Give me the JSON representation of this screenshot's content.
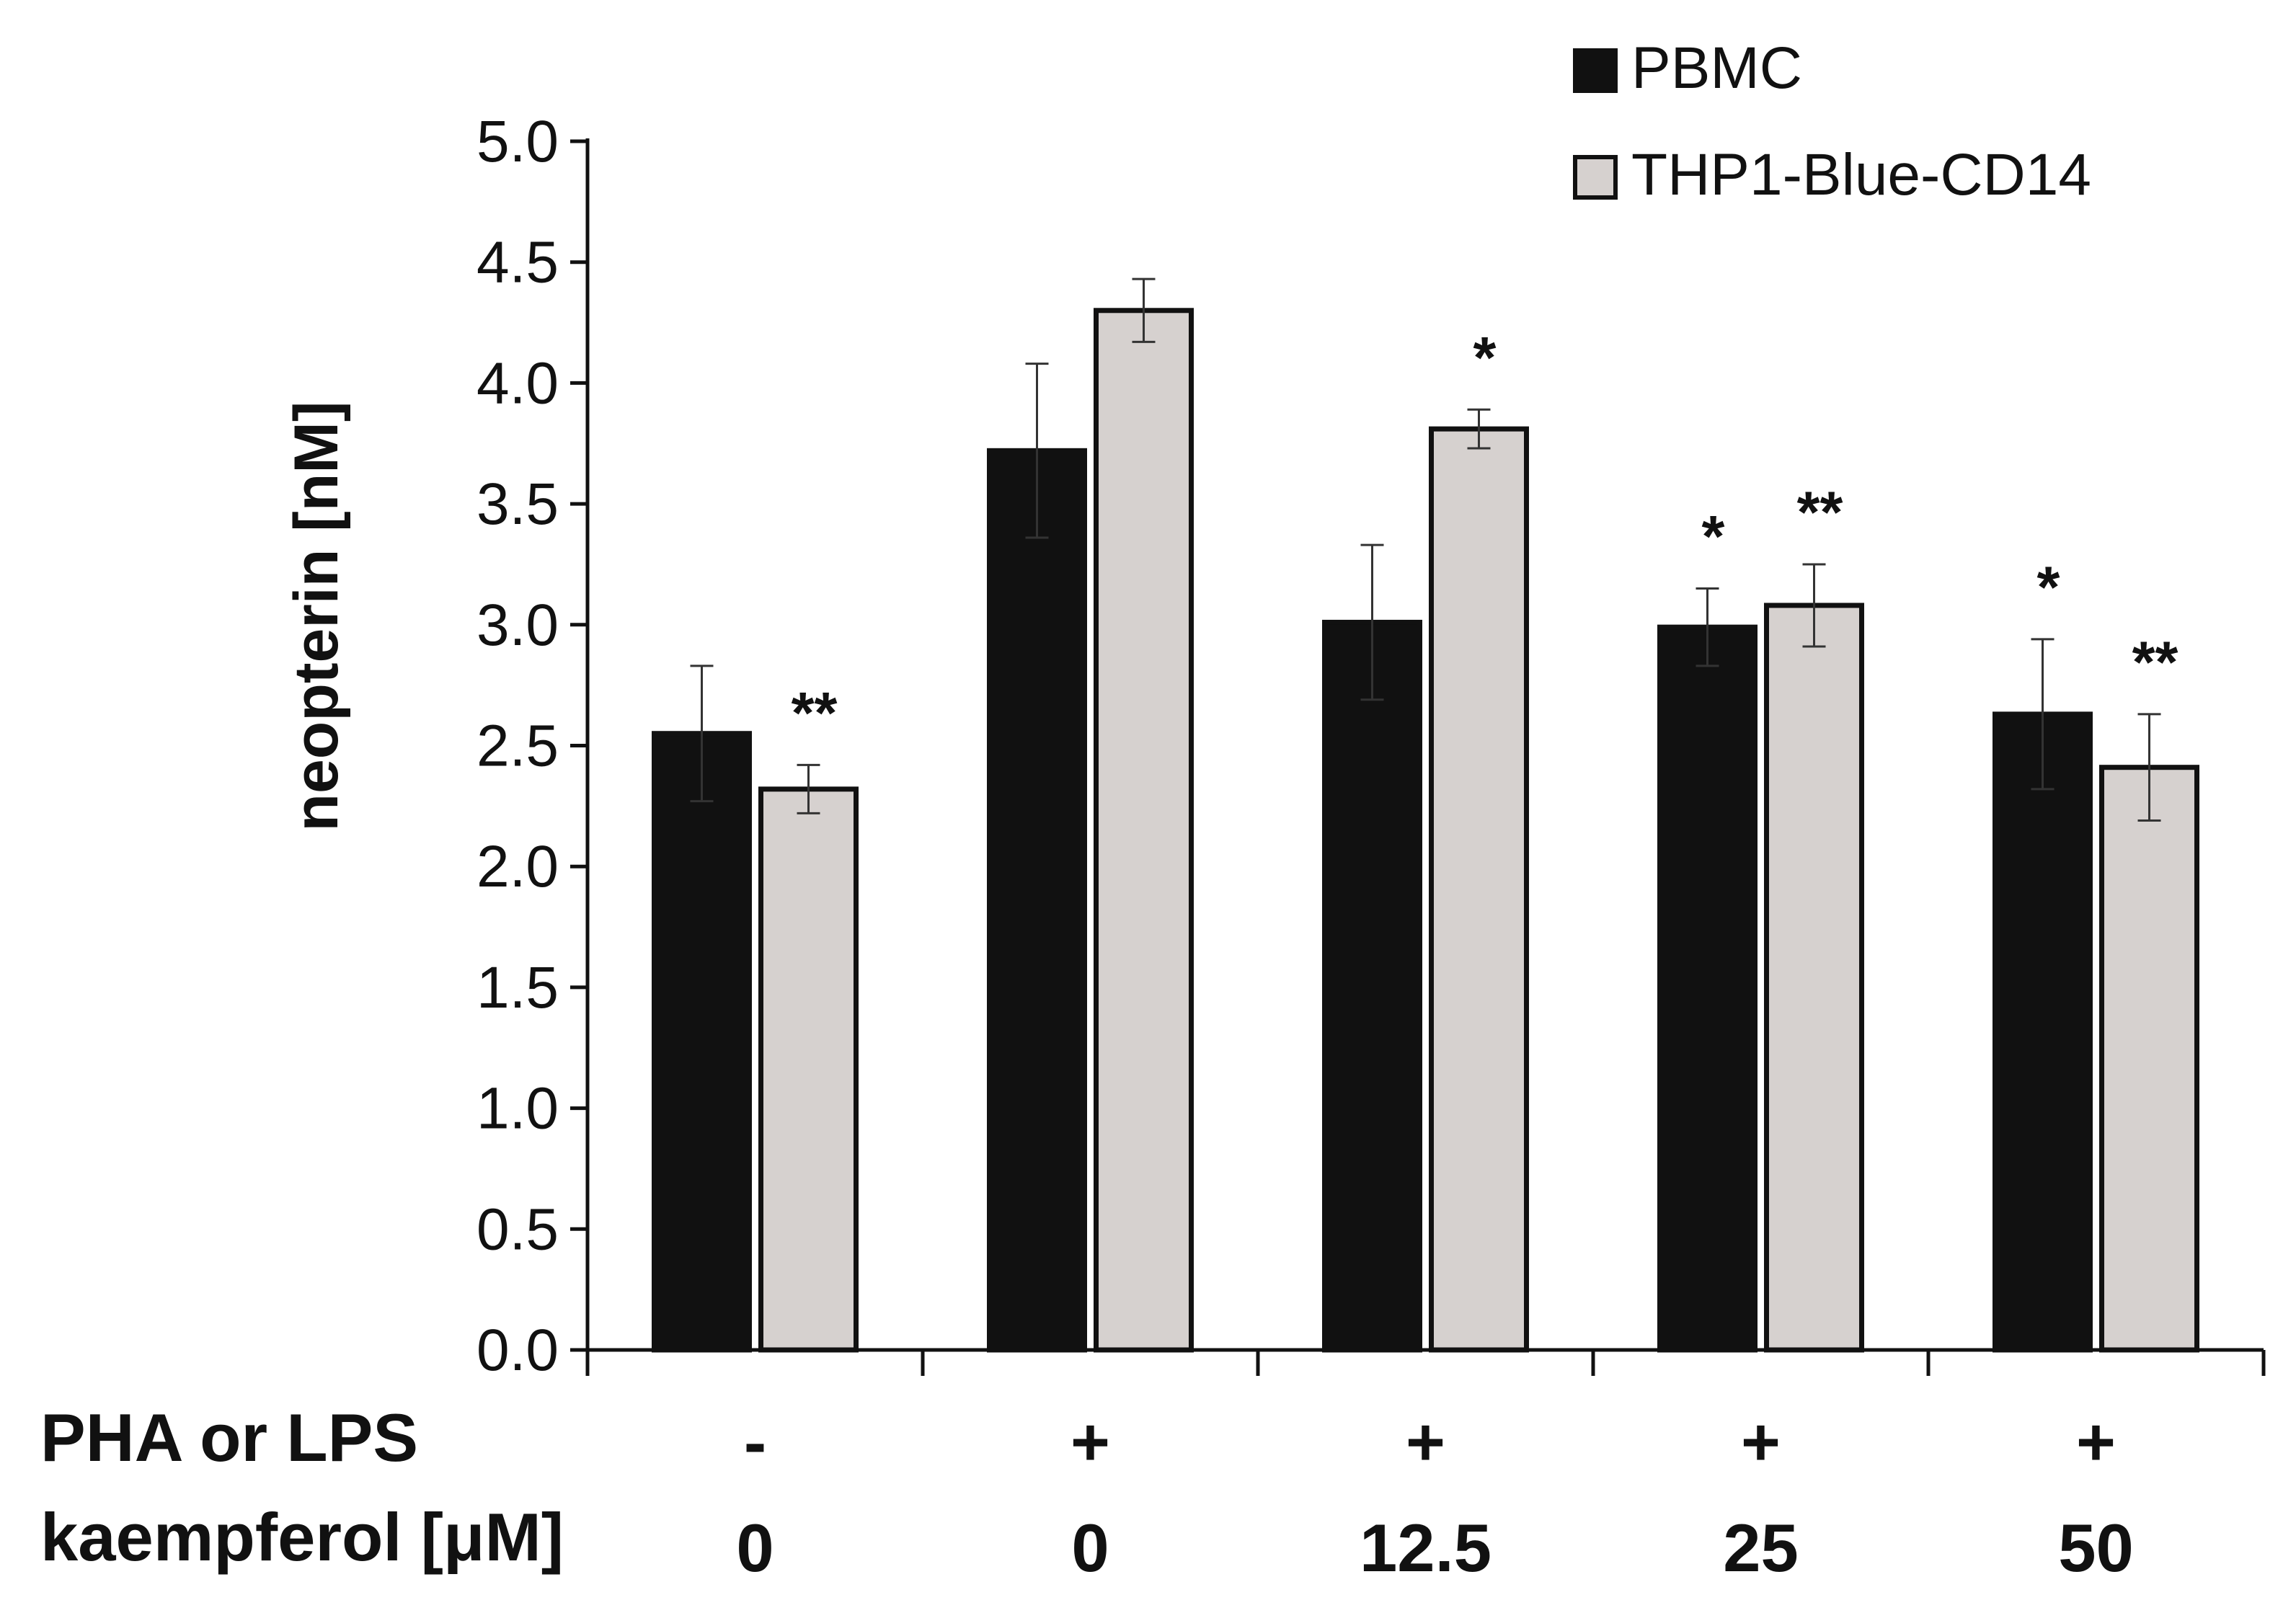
{
  "chart_data": {
    "type": "bar",
    "title": "",
    "xlabel": "",
    "ylabel": "neopterin [nM]",
    "ylim": [
      0,
      5.0
    ],
    "yticks": [
      "0.0",
      "0.5",
      "1.0",
      "1.5",
      "2.0",
      "2.5",
      "3.0",
      "3.5",
      "4.0",
      "4.5",
      "5.0"
    ],
    "grid": false,
    "legend_position": "top-right",
    "row_labels": [
      "PHA or LPS",
      "kaempferol [μM]"
    ],
    "categories": [
      {
        "stim": "-",
        "dose": "0"
      },
      {
        "stim": "+",
        "dose": "0"
      },
      {
        "stim": "+",
        "dose": "12.5"
      },
      {
        "stim": "+",
        "dose": "25"
      },
      {
        "stim": "+",
        "dose": "50"
      }
    ],
    "series": [
      {
        "name": "PBMC",
        "color": "#111111",
        "values": [
          2.55,
          3.72,
          3.01,
          2.99,
          2.63
        ],
        "errors": [
          0.28,
          0.36,
          0.32,
          0.16,
          0.31
        ],
        "significance": [
          "",
          "",
          "",
          "*",
          "*"
        ]
      },
      {
        "name": "THP1-Blue-CD14",
        "color": "#d6d1cf",
        "values": [
          2.32,
          4.3,
          3.81,
          3.08,
          2.41
        ],
        "errors": [
          0.1,
          0.13,
          0.08,
          0.17,
          0.22
        ],
        "significance": [
          "**",
          "",
          "*",
          "**",
          "**"
        ]
      }
    ]
  }
}
